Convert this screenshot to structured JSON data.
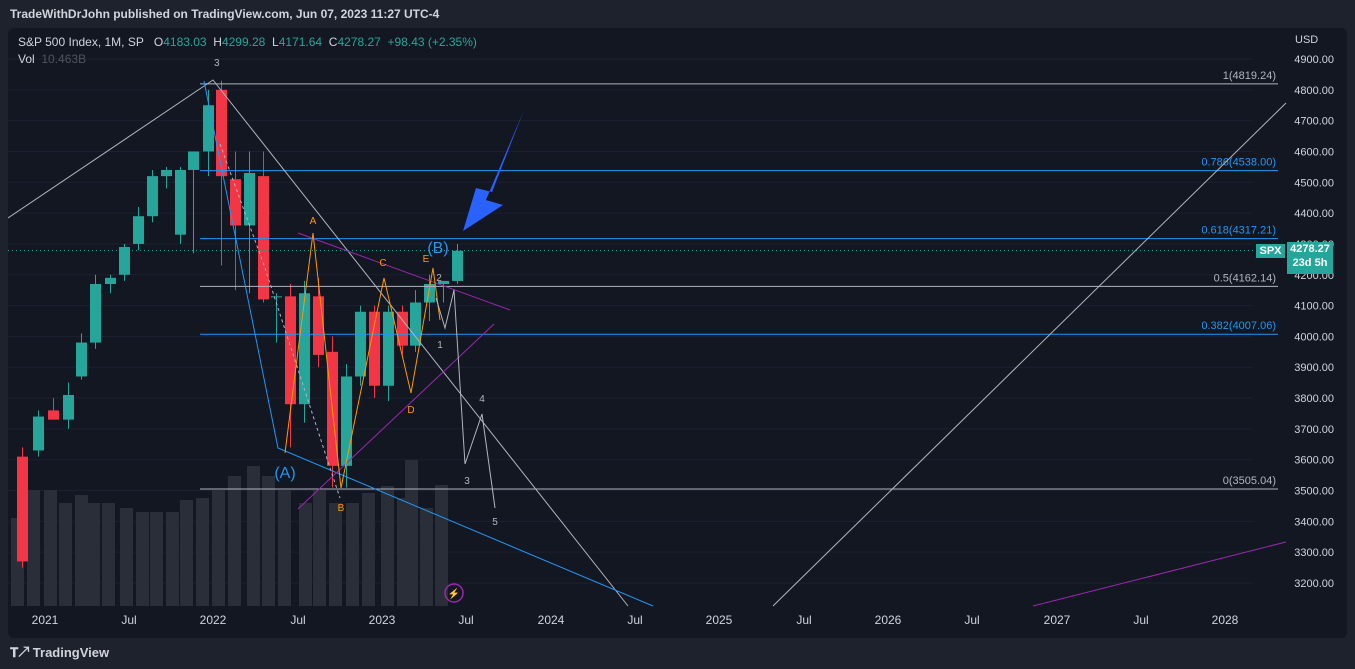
{
  "header": {
    "publisher": "TradeWithDrJohn published on TradingView.com, Jun 07, 2023 11:27 UTC-4"
  },
  "legend": {
    "symbol": "S&P 500 Index, 1M, SP",
    "open_label": "O",
    "open": "4183.03",
    "high_label": "H",
    "high": "4299.28",
    "low_label": "L",
    "low": "4171.64",
    "close_label": "C",
    "close": "4278.27",
    "change": "+98.43 (+2.35%)",
    "vol_label": "Vol",
    "vol_value": "10.463B"
  },
  "currency": "USD",
  "last_price": {
    "symbol": "SPX",
    "value": "4278.27",
    "countdown": "23d 5h"
  },
  "price_axis": [
    "4900.00",
    "4800.00",
    "4700.00",
    "4600.00",
    "4500.00",
    "4400.00",
    "4300.00",
    "4200.00",
    "4100.00",
    "4000.00",
    "3900.00",
    "3800.00",
    "3700.00",
    "3600.00",
    "3500.00",
    "3400.00",
    "3300.00",
    "3200.00"
  ],
  "time_axis": [
    "2021",
    "Jul",
    "2022",
    "Jul",
    "2023",
    "Jul",
    "2024",
    "Jul",
    "2025",
    "Jul",
    "2026",
    "Jul",
    "2027",
    "Jul",
    "2028"
  ],
  "fib_levels": [
    {
      "label": "1(4819.24)",
      "color": "#b2b5be"
    },
    {
      "label": "0.786(4538.00)",
      "color": "#2196f3"
    },
    {
      "label": "0.618(4317.21)",
      "color": "#2196f3"
    },
    {
      "label": "0.5(4162.14)",
      "color": "#b2b5be"
    },
    {
      "label": "0.382(4007.06)",
      "color": "#2196f3"
    },
    {
      "label": "0(3505.04)",
      "color": "#b2b5be"
    }
  ],
  "wave_labels": {
    "top3": "3",
    "A_big": "(A)",
    "B_big": "(B)",
    "a": "A",
    "b": "B",
    "c": "C",
    "d": "D",
    "e": "E",
    "w1": "1",
    "w2": "2",
    "w3": "3",
    "w4": "4",
    "w5": "5"
  },
  "colors": {
    "bull": "#26a69a",
    "bear": "#f23645",
    "fib_blue": "#2196f3",
    "fib_gray": "#b2b5be",
    "purple": "#9c27b0",
    "orange": "#ff9800",
    "arrow": "#2962ff"
  },
  "footer": {
    "brand": "TradingView"
  }
}
